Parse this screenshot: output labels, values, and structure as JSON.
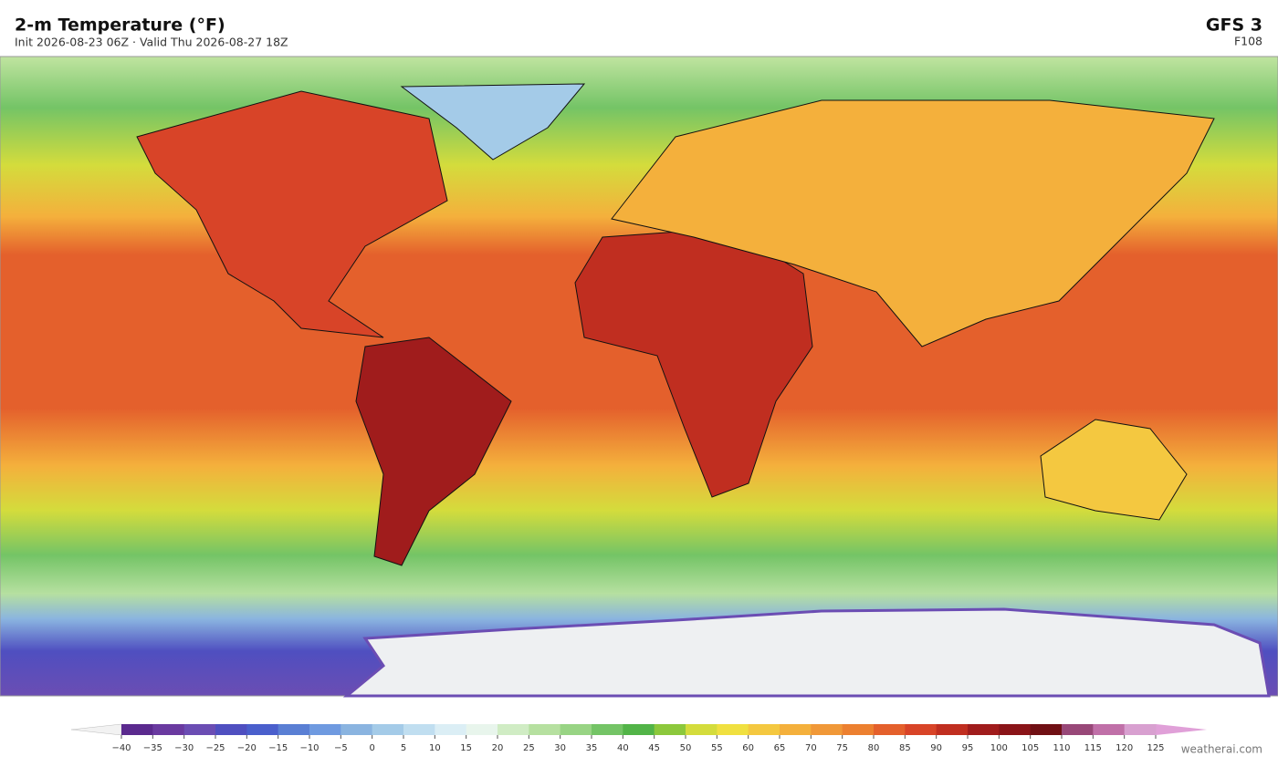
{
  "header": {
    "title": "2-m Temperature  (°F)",
    "subtitle": "Init 2026-08-23 06Z  ·  Valid Thu 2026-08-27 18Z",
    "model": "GFS  3",
    "forecast_hour": "F108"
  },
  "colorbar": {
    "ticks": [
      {
        "value": -40,
        "label": "−40"
      },
      {
        "value": -35,
        "label": "−35"
      },
      {
        "value": -30,
        "label": "−30"
      },
      {
        "value": -25,
        "label": "−25"
      },
      {
        "value": -20,
        "label": "−20"
      },
      {
        "value": -15,
        "label": "−15"
      },
      {
        "value": -10,
        "label": "−10"
      },
      {
        "value": -5,
        "label": "−5"
      },
      0,
      5,
      10,
      15,
      20,
      25,
      30,
      35,
      40,
      45,
      50,
      55,
      60,
      65,
      70,
      75,
      80,
      85,
      90,
      95,
      100,
      105,
      110,
      115,
      120,
      125
    ],
    "colors": [
      "#5b2a8e",
      "#6a3aa0",
      "#6b4db3",
      "#4f4fc0",
      "#4a5fcc",
      "#5a7fd4",
      "#6f9ae0",
      "#8ab4e0",
      "#a4cbe8",
      "#c0def0",
      "#dbeef5",
      "#e8f5ec",
      "#d0ecc4",
      "#b6e0a0",
      "#98d484",
      "#74c466",
      "#52b448",
      "#8cc83c",
      "#d4dc3c",
      "#f0e040",
      "#f4c840",
      "#f4b03c",
      "#f09838",
      "#ec8030",
      "#e4602c",
      "#d84428",
      "#c02e20",
      "#a01c1c",
      "#8a1418",
      "#701014",
      "#984878",
      "#c070a8",
      "#d8a0d0"
    ],
    "under_color": "#f2f2f2",
    "over_color": "#e0a0d8"
  },
  "watermark": "weatherai.com"
}
